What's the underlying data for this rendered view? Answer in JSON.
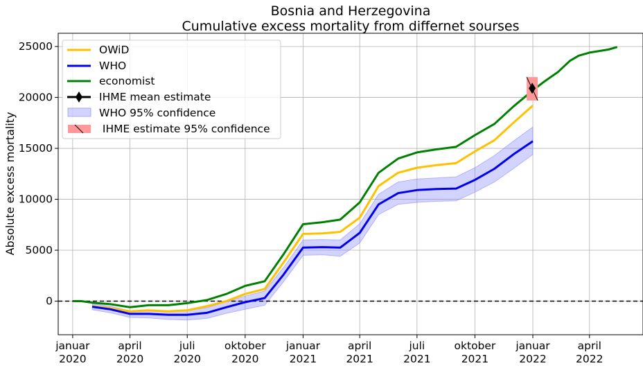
{
  "chart_data": {
    "type": "line",
    "title": "Bosnia and Herzegovina",
    "subtitle": "Cumulative excess mortality from differnet sourses",
    "ylabel": "Absolute excess mortality",
    "xlabel": "",
    "ylim": [
      -3300,
      26300
    ],
    "xlim": [
      "2019-12-09",
      "2022-06-25"
    ],
    "grid": true,
    "legend_position": "top-left",
    "y_ticks": [
      0,
      5000,
      10000,
      15000,
      20000,
      25000
    ],
    "x_ticks": [
      {
        "date": "2020-01-01",
        "label1": "januar",
        "label2": "2020"
      },
      {
        "date": "2020-04-01",
        "label1": "april",
        "label2": "2020"
      },
      {
        "date": "2020-07-01",
        "label1": "juli",
        "label2": "2020"
      },
      {
        "date": "2020-10-01",
        "label1": "oktober",
        "label2": "2020"
      },
      {
        "date": "2021-01-01",
        "label1": "januar",
        "label2": "2021"
      },
      {
        "date": "2021-04-01",
        "label1": "april",
        "label2": "2021"
      },
      {
        "date": "2021-07-01",
        "label1": "juli",
        "label2": "2021"
      },
      {
        "date": "2021-10-01",
        "label1": "oktober",
        "label2": "2021"
      },
      {
        "date": "2022-01-01",
        "label1": "januar",
        "label2": "2022"
      },
      {
        "date": "2022-04-01",
        "label1": "april",
        "label2": "2022"
      }
    ],
    "reference_line": {
      "y": 0,
      "style": "dashed",
      "color": "#000000"
    },
    "series": [
      {
        "name": "OWiD",
        "color": "#ffc000",
        "points": [
          [
            "2020-02-01",
            -500
          ],
          [
            "2020-03-01",
            -700
          ],
          [
            "2020-04-01",
            -1000
          ],
          [
            "2020-05-01",
            -900
          ],
          [
            "2020-06-01",
            -1000
          ],
          [
            "2020-07-01",
            -900
          ],
          [
            "2020-08-01",
            -500
          ],
          [
            "2020-09-01",
            0
          ],
          [
            "2020-10-01",
            700
          ],
          [
            "2020-11-01",
            1200
          ],
          [
            "2020-12-01",
            3800
          ],
          [
            "2021-01-01",
            6600
          ],
          [
            "2021-02-01",
            6650
          ],
          [
            "2021-03-01",
            6800
          ],
          [
            "2021-04-01",
            8200
          ],
          [
            "2021-05-01",
            11300
          ],
          [
            "2021-06-01",
            12600
          ],
          [
            "2021-07-01",
            13100
          ],
          [
            "2021-08-01",
            13350
          ],
          [
            "2021-09-01",
            13550
          ],
          [
            "2021-10-01",
            14700
          ],
          [
            "2021-11-01",
            15800
          ],
          [
            "2021-12-01",
            17500
          ],
          [
            "2022-01-01",
            19200
          ]
        ]
      },
      {
        "name": "WHO",
        "color": "#0000ee",
        "points": [
          [
            "2020-02-01",
            -550
          ],
          [
            "2020-03-01",
            -800
          ],
          [
            "2020-04-01",
            -1250
          ],
          [
            "2020-05-01",
            -1250
          ],
          [
            "2020-06-01",
            -1350
          ],
          [
            "2020-07-01",
            -1350
          ],
          [
            "2020-08-01",
            -1150
          ],
          [
            "2020-09-01",
            -600
          ],
          [
            "2020-10-01",
            -100
          ],
          [
            "2020-11-01",
            300
          ],
          [
            "2020-12-01",
            2600
          ],
          [
            "2021-01-01",
            5250
          ],
          [
            "2021-02-01",
            5300
          ],
          [
            "2021-03-01",
            5250
          ],
          [
            "2021-04-01",
            6700
          ],
          [
            "2021-05-01",
            9500
          ],
          [
            "2021-06-01",
            10600
          ],
          [
            "2021-07-01",
            10900
          ],
          [
            "2021-08-01",
            11000
          ],
          [
            "2021-09-01",
            11050
          ],
          [
            "2021-10-01",
            11900
          ],
          [
            "2021-11-01",
            13000
          ],
          [
            "2021-12-01",
            14400
          ],
          [
            "2022-01-01",
            15700
          ]
        ]
      },
      {
        "name": "economist",
        "color": "#008000",
        "points": [
          [
            "2020-01-01",
            0
          ],
          [
            "2020-01-15",
            0
          ],
          [
            "2020-02-01",
            -150
          ],
          [
            "2020-03-01",
            -300
          ],
          [
            "2020-04-01",
            -600
          ],
          [
            "2020-05-01",
            -400
          ],
          [
            "2020-06-01",
            -400
          ],
          [
            "2020-07-01",
            -200
          ],
          [
            "2020-08-01",
            100
          ],
          [
            "2020-09-01",
            700
          ],
          [
            "2020-10-01",
            1500
          ],
          [
            "2020-11-01",
            1950
          ],
          [
            "2020-12-01",
            4600
          ],
          [
            "2021-01-01",
            7550
          ],
          [
            "2021-02-01",
            7750
          ],
          [
            "2021-03-01",
            8000
          ],
          [
            "2021-04-01",
            9700
          ],
          [
            "2021-05-01",
            12600
          ],
          [
            "2021-06-01",
            14000
          ],
          [
            "2021-07-01",
            14600
          ],
          [
            "2021-08-01",
            14900
          ],
          [
            "2021-09-01",
            15150
          ],
          [
            "2021-10-01",
            16300
          ],
          [
            "2021-11-01",
            17400
          ],
          [
            "2021-12-01",
            19100
          ],
          [
            "2022-01-01",
            20700
          ],
          [
            "2022-01-20",
            21600
          ],
          [
            "2022-02-10",
            22500
          ],
          [
            "2022-03-01",
            23600
          ],
          [
            "2022-03-15",
            24100
          ],
          [
            "2022-04-01",
            24400
          ],
          [
            "2022-05-01",
            24700
          ],
          [
            "2022-05-15",
            24950
          ]
        ]
      }
    ],
    "confidence_band": {
      "name": "WHO 95% confidence",
      "color": "#8080ff",
      "points": [
        [
          "2020-02-01",
          -250,
          -850
        ],
        [
          "2020-03-01",
          -500,
          -1150
        ],
        [
          "2020-04-01",
          -950,
          -1600
        ],
        [
          "2020-05-01",
          -900,
          -1650
        ],
        [
          "2020-06-01",
          -950,
          -1800
        ],
        [
          "2020-07-01",
          -900,
          -1850
        ],
        [
          "2020-08-01",
          -650,
          -1700
        ],
        [
          "2020-09-01",
          -50,
          -1200
        ],
        [
          "2020-10-01",
          500,
          -800
        ],
        [
          "2020-11-01",
          1000,
          -400
        ],
        [
          "2020-12-01",
          3300,
          1900
        ],
        [
          "2021-01-01",
          6000,
          4500
        ],
        [
          "2021-02-01",
          6050,
          4550
        ],
        [
          "2021-03-01",
          6000,
          4400
        ],
        [
          "2021-04-01",
          7600,
          5700
        ],
        [
          "2021-05-01",
          10500,
          8500
        ],
        [
          "2021-06-01",
          11700,
          9500
        ],
        [
          "2021-07-01",
          12000,
          9700
        ],
        [
          "2021-08-01",
          12100,
          9800
        ],
        [
          "2021-09-01",
          12200,
          9850
        ],
        [
          "2021-10-01",
          13100,
          10700
        ],
        [
          "2021-11-01",
          14300,
          11700
        ],
        [
          "2021-12-01",
          15700,
          13000
        ],
        [
          "2022-01-01",
          17100,
          14400
        ]
      ]
    },
    "ihme": {
      "mean_name": "IHME mean estimate",
      "interval_name": " IHME estimate 95% confidence",
      "date": "2021-12-31",
      "mean": 20900,
      "lower": 19700,
      "upper": 22000,
      "interval_color": "#ff9999",
      "marker_color": "#000000"
    }
  }
}
